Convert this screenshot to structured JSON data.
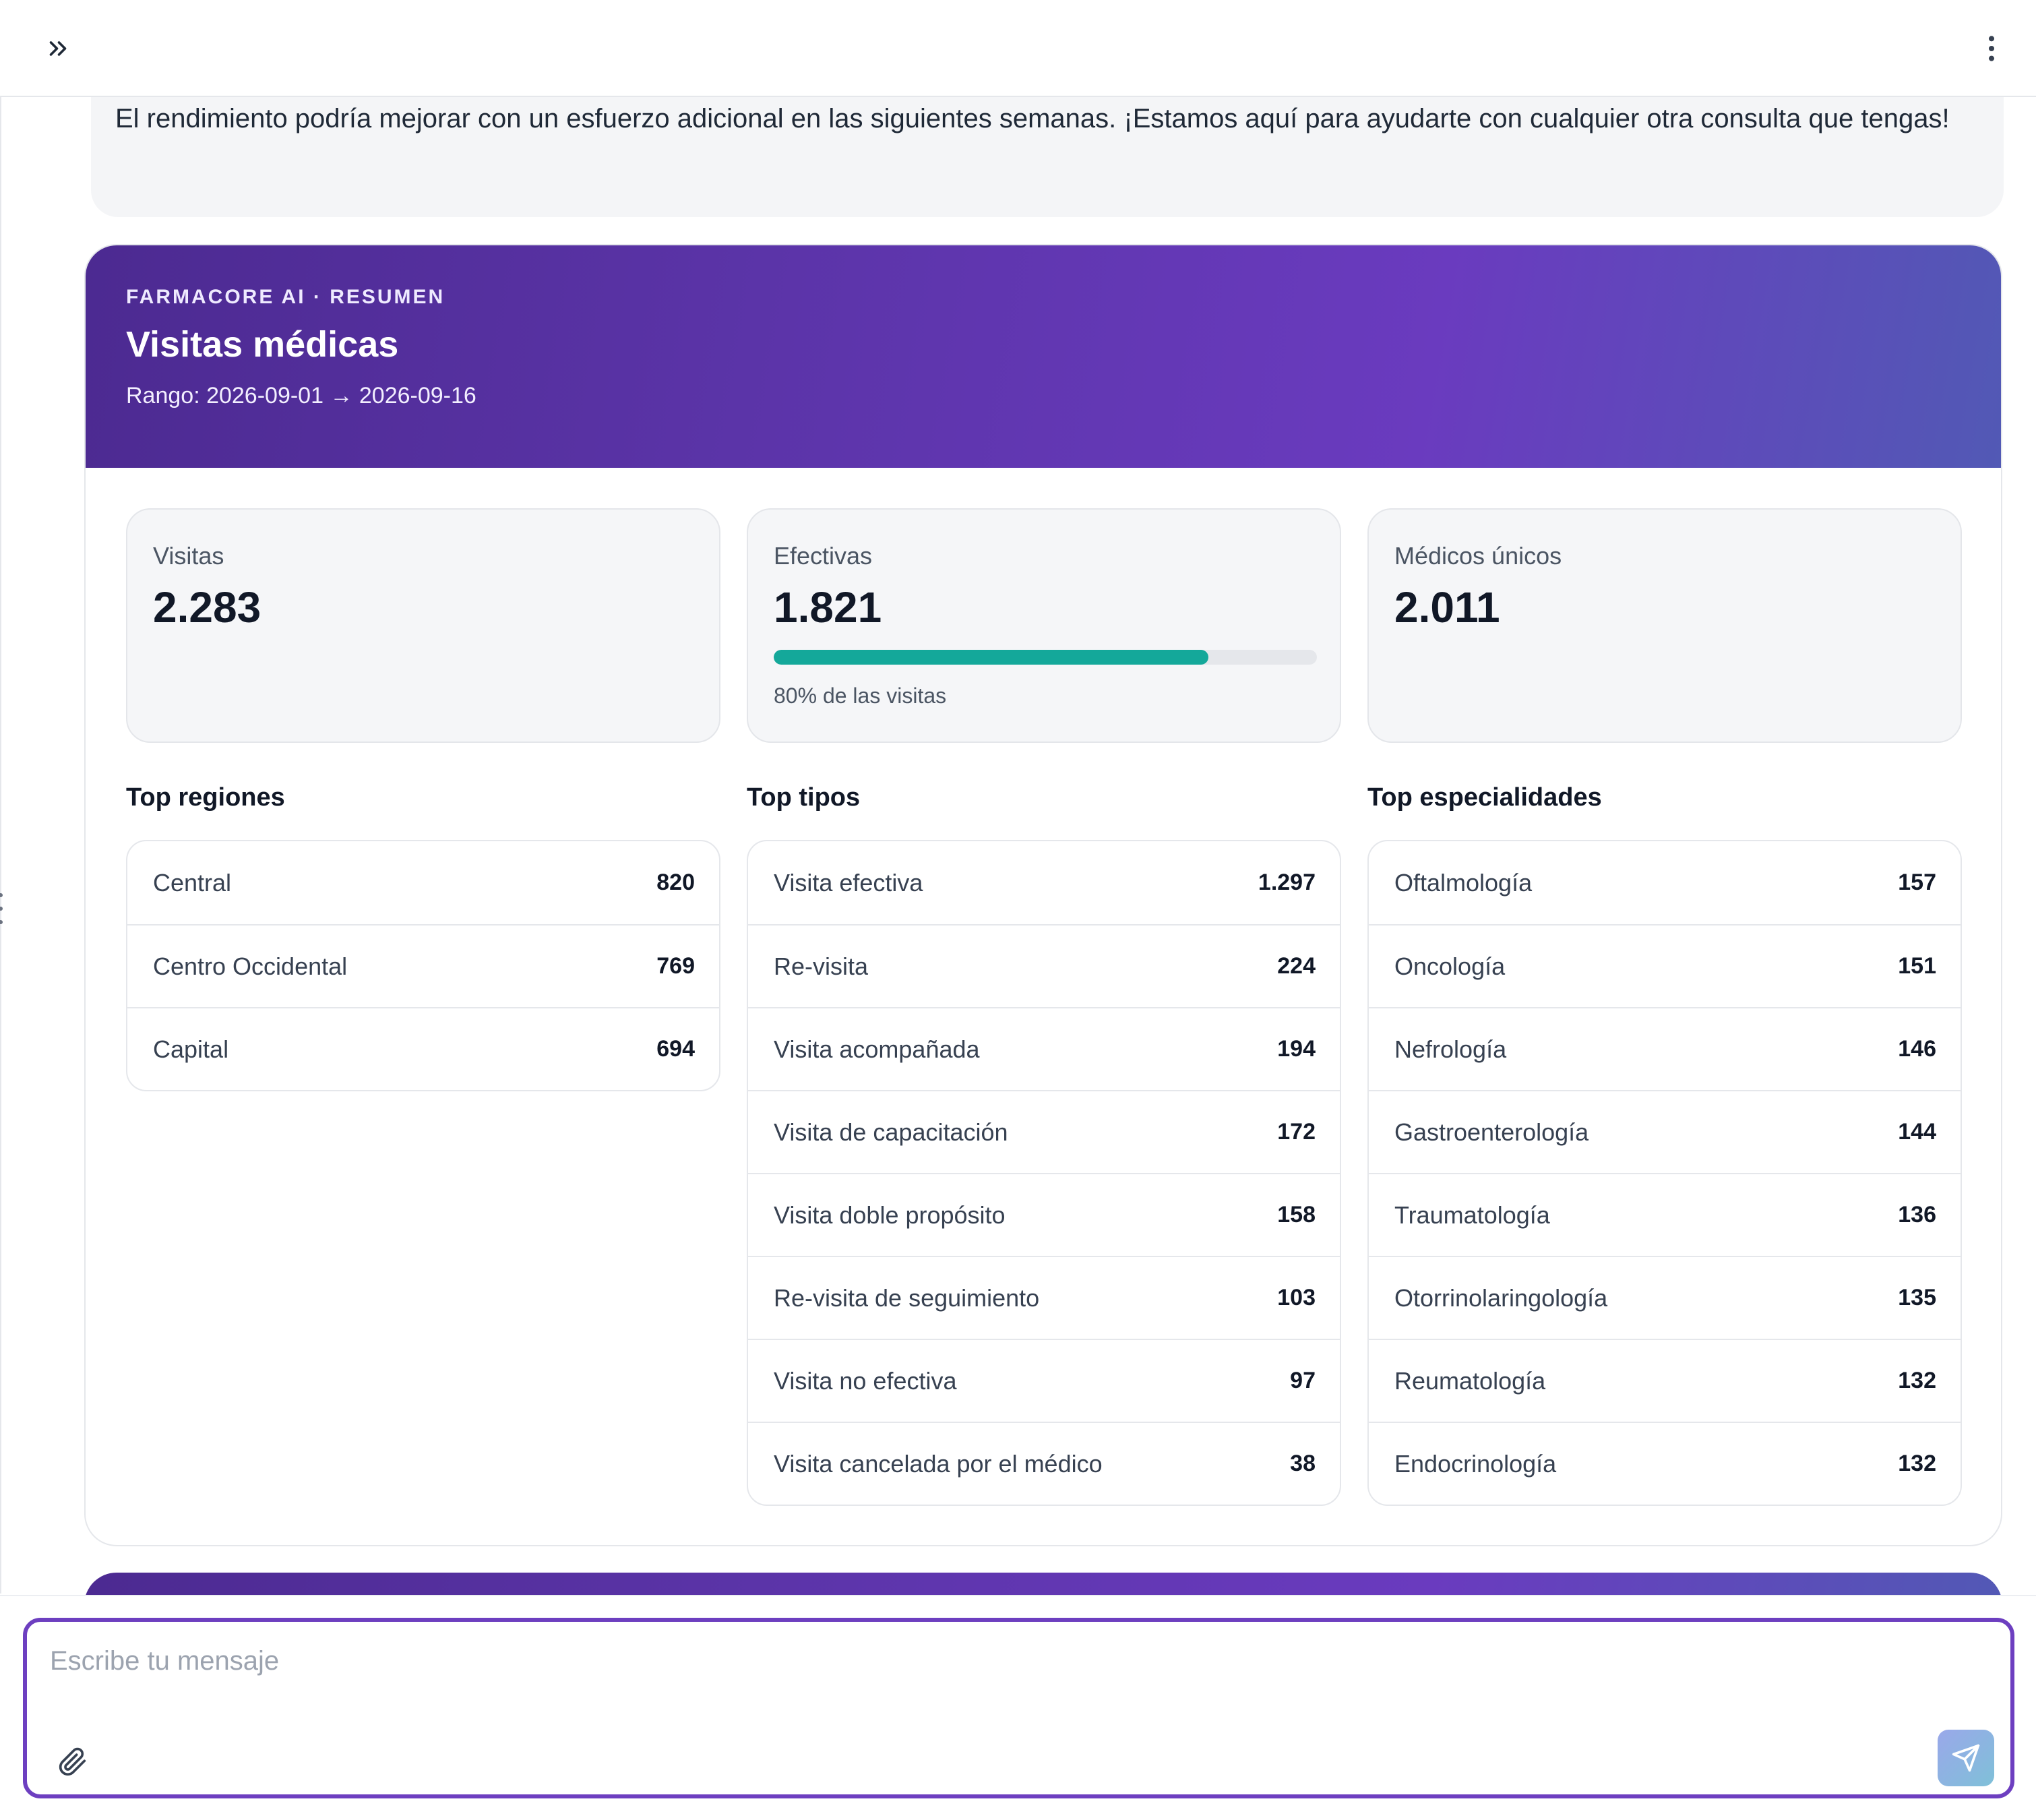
{
  "topbar": {
    "expand_icon": "chevrons-right-icon",
    "menu_icon": "more-vertical-icon"
  },
  "message": {
    "text": "El rendimiento podría mejorar con un esfuerzo adicional en las siguientes semanas. ¡Estamos aquí para ayudarte con cualquier otra consulta que tengas!"
  },
  "summary": {
    "eyebrow": "FARMACORE AI · RESUMEN",
    "title": "Visitas médicas",
    "range": "Rango: 2026-09-01 → 2026-09-16",
    "header_colors": [
      "#4c2a91",
      "#6a3bbf",
      "#5259b5"
    ],
    "kpis": {
      "visits": {
        "label": "Visitas",
        "value": "2.283"
      },
      "effective": {
        "label": "Efectivas",
        "value": "1.821",
        "progress_percent": 80,
        "note": "80% de las visitas",
        "bar_color": "#14a89a"
      },
      "doctors": {
        "label": "Médicos únicos",
        "value": "2.011"
      }
    },
    "top_regions": {
      "title": "Top regiones",
      "rows": [
        {
          "label": "Central",
          "value": "820"
        },
        {
          "label": "Centro Occidental",
          "value": "769"
        },
        {
          "label": "Capital",
          "value": "694"
        }
      ]
    },
    "top_types": {
      "title": "Top tipos",
      "rows": [
        {
          "label": "Visita efectiva",
          "value": "1.297"
        },
        {
          "label": "Re-visita",
          "value": "224"
        },
        {
          "label": "Visita acompañada",
          "value": "194"
        },
        {
          "label": "Visita de capacitación",
          "value": "172"
        },
        {
          "label": "Visita doble propósito",
          "value": "158"
        },
        {
          "label": "Re-visita de seguimiento",
          "value": "103"
        },
        {
          "label": "Visita no efectiva",
          "value": "97"
        },
        {
          "label": "Visita cancelada por el médico",
          "value": "38"
        }
      ]
    },
    "top_specialties": {
      "title": "Top especialidades",
      "rows": [
        {
          "label": "Oftalmología",
          "value": "157"
        },
        {
          "label": "Oncología",
          "value": "151"
        },
        {
          "label": "Nefrología",
          "value": "146"
        },
        {
          "label": "Gastroenterología",
          "value": "144"
        },
        {
          "label": "Traumatología",
          "value": "136"
        },
        {
          "label": "Otorrinolaringología",
          "value": "135"
        },
        {
          "label": "Reumatología",
          "value": "132"
        },
        {
          "label": "Endocrinología",
          "value": "132"
        }
      ]
    }
  },
  "composer": {
    "placeholder": "Escribe tu mensaje",
    "value": "",
    "attach_icon": "paperclip-icon",
    "send_icon": "send-icon",
    "accent_color": "#6d3fc0"
  }
}
